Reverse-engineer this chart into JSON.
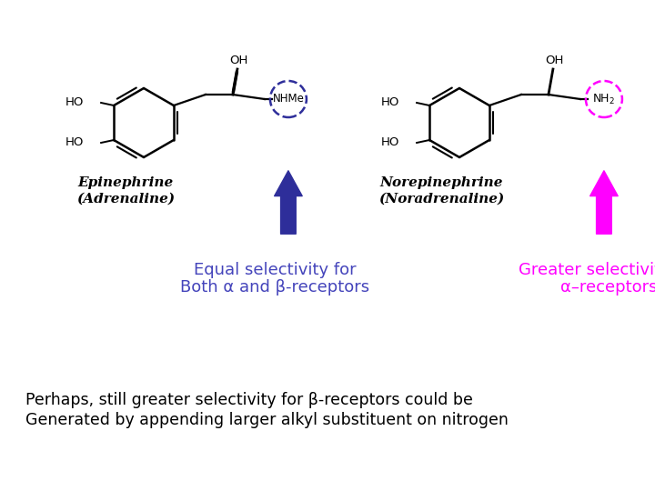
{
  "background_color": "#ffffff",
  "arrow_left_color": "#2E2E9A",
  "arrow_right_color": "#FF00FF",
  "text_left_color": "#4444BB",
  "text_right_color": "#FF00FF",
  "text_bottom_color": "#000000",
  "label_left_line1": "Equal selectivity for",
  "label_left_line2": "Both α and β-receptors",
  "label_right_line1": "Greater selectivity for",
  "label_right_line2": "α–receptors",
  "bottom_line1": "Perhaps, still greater selectivity for β-receptors could be",
  "bottom_line2": "Generated by appending larger alkyl substituent on nitrogen",
  "epi_name_line1": "Epinephrine",
  "epi_name_line2": "(Adrenaline)",
  "norepi_name_line1": "Norepinephrine",
  "norepi_name_line2": "(Noradrenaline)"
}
